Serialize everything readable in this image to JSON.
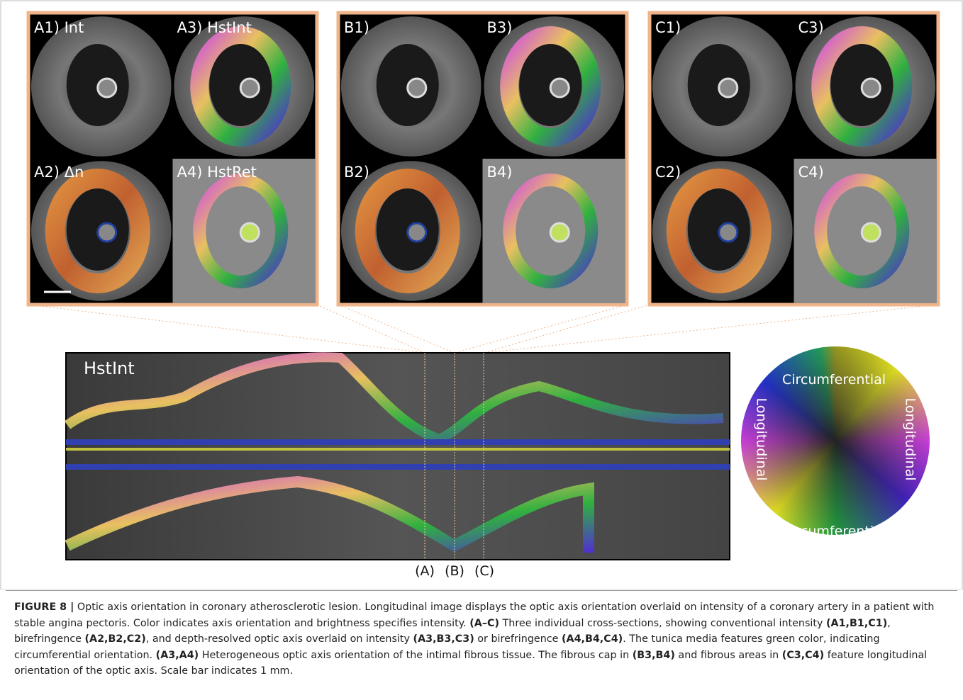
{
  "panels": [
    {
      "labels": [
        "A1) Int",
        "A3) HstInt",
        "A2) Δn",
        "A4) HstRet"
      ]
    },
    {
      "labels": [
        "B1)",
        "B3)",
        "B2)",
        "B4)"
      ]
    },
    {
      "labels": [
        "C1)",
        "C3)",
        "C2)",
        "C4)"
      ]
    }
  ],
  "longitudinal": {
    "label": "HstInt",
    "markers": [
      "(A)",
      "(B)",
      "(C)"
    ]
  },
  "color_wheel": {
    "top": "Circumferential",
    "bottom": "Circumferential",
    "left": "Longitudinal",
    "right": "Longitudinal"
  },
  "caption": [
    {
      "text": "FIGURE 8 |",
      "bold": true
    },
    {
      "text": " Optic axis orientation in coronary atherosclerotic lesion. Longitudinal image displays the optic axis orientation overlaid on intensity of a coronary artery in a patient with stable angina pectoris. Color indicates axis orientation and brightness specifies intensity. ",
      "bold": false
    },
    {
      "text": "(A–C)",
      "bold": true
    },
    {
      "text": " Three individual cross-sections, showing conventional intensity ",
      "bold": false
    },
    {
      "text": "(A1,B1,C1)",
      "bold": true
    },
    {
      "text": ", birefringence ",
      "bold": false
    },
    {
      "text": "(A2,B2,C2)",
      "bold": true
    },
    {
      "text": ", and depth-resolved optic axis overlaid on intensity ",
      "bold": false
    },
    {
      "text": "(A3,B3,C3)",
      "bold": true
    },
    {
      "text": " or birefringence ",
      "bold": false
    },
    {
      "text": "(A4,B4,C4)",
      "bold": true
    },
    {
      "text": ". The tunica media features green color, indicating circumferential orientation. ",
      "bold": false
    },
    {
      "text": "(A3,A4)",
      "bold": true
    },
    {
      "text": " Heterogeneous optic axis orientation of the intimal fibrous tissue. The fibrous cap in ",
      "bold": false
    },
    {
      "text": "(B3,B4)",
      "bold": true
    },
    {
      "text": " and fibrous areas in ",
      "bold": false
    },
    {
      "text": "(C3,C4)",
      "bold": true
    },
    {
      "text": " feature longitudinal orientation of the optic axis. Scale bar indicates 1 mm.",
      "bold": false
    }
  ]
}
